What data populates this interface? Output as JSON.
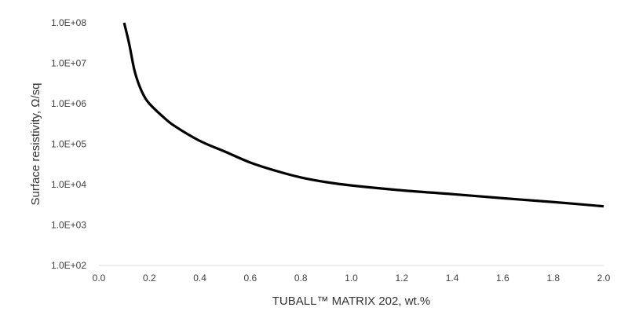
{
  "chart_data": {
    "type": "line",
    "title": "",
    "xlabel": "TUBALL™ MATRIX 202, wt.%",
    "ylabel": "Surface resistivity, Ω/sq",
    "x_scale": "linear",
    "y_scale": "log",
    "xlim": [
      0.0,
      2.0
    ],
    "ylim": [
      100,
      100000000
    ],
    "x_ticks": [
      0.0,
      0.2,
      0.4,
      0.6,
      0.8,
      1.0,
      1.2,
      1.4,
      1.6,
      1.8,
      2.0
    ],
    "x_tick_labels": [
      "0.0",
      "0.2",
      "0.4",
      "0.6",
      "0.8",
      "1.0",
      "1.2",
      "1.4",
      "1.6",
      "1.8",
      "2.0"
    ],
    "y_ticks": [
      100,
      1000,
      10000,
      100000,
      1000000,
      10000000,
      100000000
    ],
    "y_tick_labels": [
      "1.0E+02",
      "1.0E+03",
      "1.0E+04",
      "1.0E+05",
      "1.0E+06",
      "1.0E+07",
      "1.0E+08"
    ],
    "grid": false,
    "legend": "none",
    "line_color": "#000000",
    "axis_color": "#d9d9d9",
    "series": [
      {
        "x": [
          0.1,
          0.12,
          0.14,
          0.16,
          0.18,
          0.2,
          0.25,
          0.3,
          0.4,
          0.5,
          0.6,
          0.7,
          0.8,
          0.9,
          1.0,
          1.2,
          1.4,
          1.6,
          1.8,
          2.0
        ],
        "values": [
          100000000,
          30000000,
          7000000,
          2800000,
          1500000,
          1000000,
          500000,
          280000,
          120000,
          65000,
          35000,
          22000,
          15000,
          11500,
          9500,
          7200,
          5800,
          4600,
          3700,
          2900
        ]
      }
    ]
  }
}
